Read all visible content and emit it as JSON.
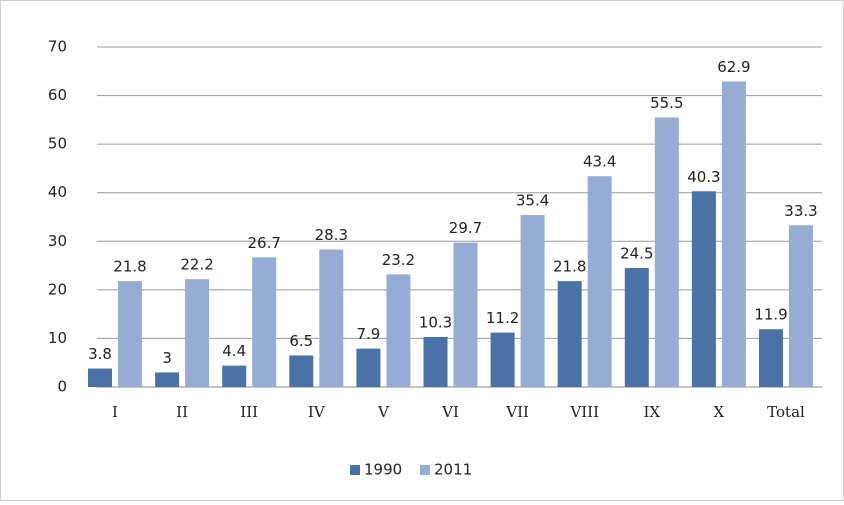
{
  "chart_data": {
    "type": "bar",
    "categories": [
      "I",
      "II",
      "III",
      "IV",
      "V",
      "VI",
      "VII",
      "VIII",
      "IX",
      "X",
      "Total"
    ],
    "series": [
      {
        "name": "1990",
        "color": "#4a72a6",
        "values": [
          3.8,
          3,
          4.4,
          6.5,
          7.9,
          10.3,
          11.2,
          21.8,
          24.5,
          40.3,
          11.9
        ]
      },
      {
        "name": "2011",
        "color": "#95acd4",
        "values": [
          21.8,
          22.2,
          26.7,
          28.3,
          23.2,
          29.7,
          35.4,
          43.4,
          55.5,
          62.9,
          33.3
        ]
      }
    ],
    "ylim": [
      0,
      70
    ],
    "yticks": [
      0,
      10,
      20,
      30,
      40,
      50,
      60,
      70
    ],
    "grid": true,
    "legend": "bottom"
  }
}
